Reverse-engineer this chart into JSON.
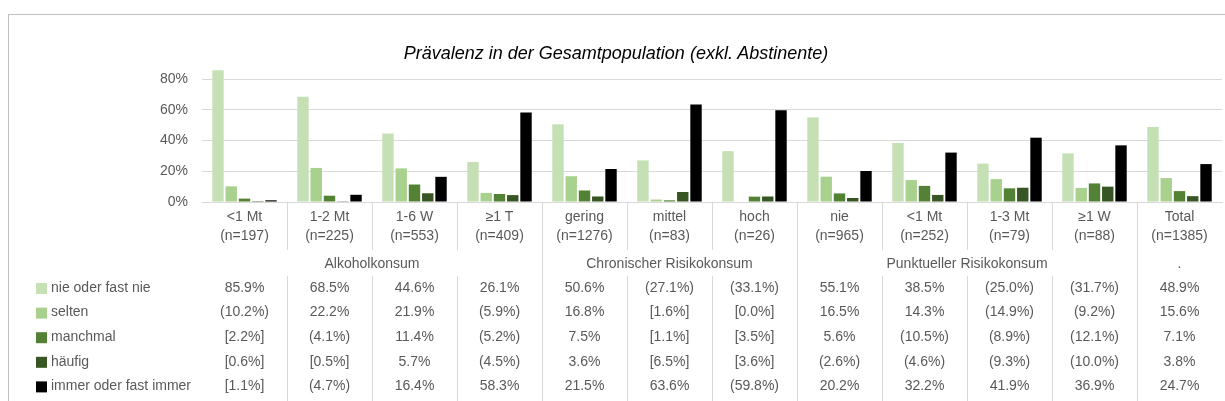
{
  "chart_data": {
    "type": "bar",
    "title": "Prävalenz in der Gesamtpopulation (exkl. Abstinente)",
    "categories": [
      "<1 Mt\n(n=197)",
      "1-2 Mt\n(n=225)",
      "1-6 W\n(n=553)",
      "≥1 T\n(n=409)",
      "gering\n(n=1276)",
      "mittel\n(n=83)",
      "hoch\n(n=26)",
      "nie\n(n=965)",
      "<1 Mt\n(n=252)",
      "1-3 Mt\n(n=79)",
      "≥1 W\n(n=88)",
      "Total\n(n=1385)"
    ],
    "series": [
      {
        "name": "nie oder fast nie",
        "color": "#c5e0b4",
        "values": [
          85.9,
          68.5,
          44.6,
          26.1,
          50.6,
          27.1,
          33.1,
          55.1,
          38.5,
          25.0,
          31.7,
          48.9
        ],
        "value_labels": [
          "85.9%",
          "68.5%",
          "44.6%",
          "26.1%",
          "50.6%",
          "(27.1%)",
          "(33.1%)",
          "55.1%",
          "38.5%",
          "(25.0%)",
          "(31.7%)",
          "48.9%"
        ]
      },
      {
        "name": "selten",
        "color": "#a9d18e",
        "values": [
          10.2,
          22.2,
          21.9,
          5.9,
          16.8,
          1.6,
          0.0,
          16.5,
          14.3,
          14.9,
          9.2,
          15.6
        ],
        "value_labels": [
          "(10.2%)",
          "22.2%",
          "21.9%",
          "(5.9%)",
          "16.8%",
          "[1.6%]",
          "[0.0%]",
          "16.5%",
          "14.3%",
          "(14.9%)",
          "(9.2%)",
          "15.6%"
        ]
      },
      {
        "name": "manchmal",
        "color": "#548235",
        "values": [
          2.2,
          4.1,
          11.4,
          5.2,
          7.5,
          1.1,
          3.5,
          5.6,
          10.5,
          8.9,
          12.1,
          7.1
        ],
        "value_labels": [
          "[2.2%]",
          "(4.1%)",
          "11.4%",
          "(5.2%)",
          "7.5%",
          "[1.1%]",
          "[3.5%]",
          "5.6%",
          "(10.5%)",
          "(8.9%)",
          "(12.1%)",
          "7.1%"
        ]
      },
      {
        "name": "häufig",
        "color": "#375623",
        "values": [
          0.6,
          0.5,
          5.7,
          4.5,
          3.6,
          6.5,
          3.6,
          2.6,
          4.6,
          9.3,
          10.0,
          3.8
        ],
        "value_labels": [
          "[0.6%]",
          "[0.5%]",
          "5.7%",
          "(4.5%)",
          "3.6%",
          "[6.5%]",
          "[3.6%]",
          "(2.6%)",
          "(4.6%)",
          "(9.3%)",
          "(10.0%)",
          "3.8%"
        ]
      },
      {
        "name": "immer oder fast immer",
        "color": "#000000",
        "values": [
          1.1,
          4.7,
          16.4,
          58.3,
          21.5,
          63.6,
          59.8,
          20.2,
          32.2,
          41.9,
          36.9,
          24.7
        ],
        "value_labels": [
          "[1.1%]",
          "(4.7%)",
          "16.4%",
          "58.3%",
          "21.5%",
          "63.6%",
          "(59.8%)",
          "20.2%",
          "32.2%",
          "41.9%",
          "36.9%",
          "24.7%"
        ]
      }
    ],
    "ylim": [
      0,
      86
    ],
    "yticks": [
      {
        "value": 0,
        "label": "0%"
      },
      {
        "value": 20,
        "label": "20%"
      },
      {
        "value": 40,
        "label": "40%"
      },
      {
        "value": 60,
        "label": "60%"
      },
      {
        "value": 80,
        "label": "80%"
      }
    ],
    "annotations": [
      "Alkoholkonsum",
      "Chronischer Risikokonsum",
      "Punktueller Risikokonsum",
      "."
    ],
    "grid": "y",
    "legend": "bottom left"
  }
}
